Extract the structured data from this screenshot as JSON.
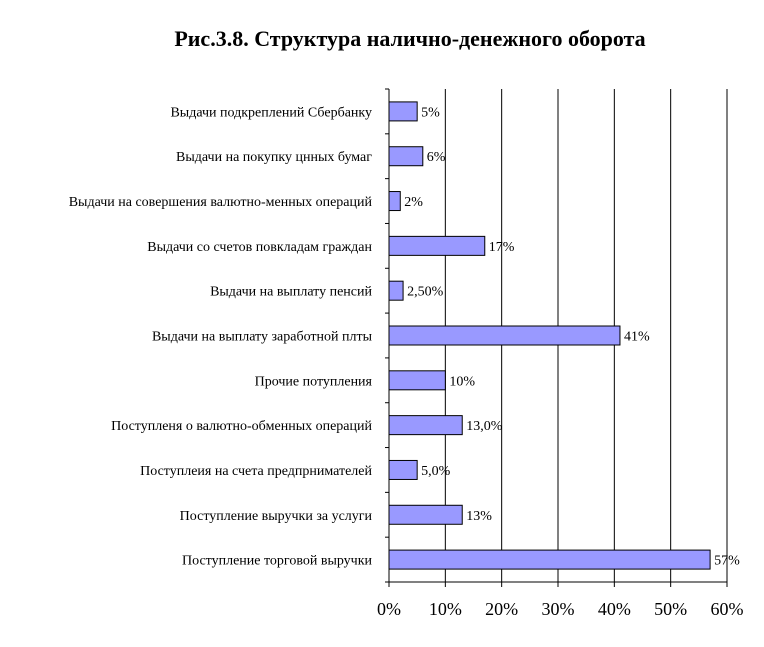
{
  "chart_data": {
    "type": "bar",
    "orientation": "horizontal",
    "title": "Рис.3.8. Структура налично-денежного оборота",
    "categories": [
      "Выдачи подкреплений Сбербанку",
      "Выдачи на покупку цнных бумаг",
      "Выдачи на совершения валютно-менных операций",
      "Выдачи со счетов повкладам граждан",
      "Выдачи на выплату пенсий",
      "Выдачи на выплату заработной плты",
      "Прочие потупления",
      "Поступленя о валютно-обменных операций",
      "Поступлеия на счета предпрнимателей",
      "Поступление выручки за услуги",
      "Поступление торговой выручки"
    ],
    "values": [
      5,
      6,
      2,
      17,
      2.5,
      41,
      10,
      13,
      5,
      13,
      57
    ],
    "data_labels": [
      "5%",
      "6%",
      "2%",
      "17%",
      "2,50%",
      "41%",
      "10%",
      "13,0%",
      "5,0%",
      "13%",
      "57%"
    ],
    "x_ticks": [
      "0%",
      "10%",
      "20%",
      "30%",
      "40%",
      "50%",
      "60%"
    ],
    "xlim": [
      0,
      60
    ],
    "grid": true,
    "legend": "none",
    "bar_color": "#9999ff",
    "bar_border": "#000000"
  }
}
